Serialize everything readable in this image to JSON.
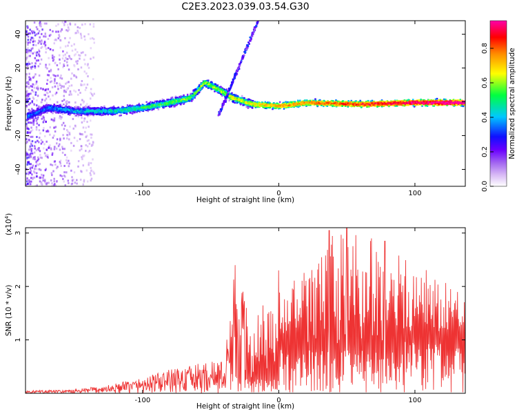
{
  "title": "C2E3.2023.039.03.54.G30",
  "chart_data": [
    {
      "type": "heatmap",
      "xlabel": "Height of straight line (km)",
      "ylabel": "Frequency (Hz)",
      "xlim": [
        -186,
        137
      ],
      "ylim": [
        -50,
        48
      ],
      "xticks": [
        -100,
        0,
        100
      ],
      "yticks": [
        -40,
        -20,
        0,
        20,
        40
      ],
      "colorbar": {
        "label": "Normalized spectral amplitude",
        "range": [
          0,
          0.96
        ],
        "ticks": [
          0.0,
          0.2,
          0.4,
          0.6,
          0.8
        ],
        "colormap": [
          "#ffffff",
          "#d7b8f5",
          "#a468f0",
          "#6a00ff",
          "#1010ff",
          "#00c8ff",
          "#00ff40",
          "#ffff00",
          "#ff8c00",
          "#ff0000",
          "#ff00a8"
        ]
      },
      "ridge": [
        {
          "x": -185,
          "y": -8
        },
        {
          "x": -170,
          "y": -3
        },
        {
          "x": -150,
          "y": -5
        },
        {
          "x": -120,
          "y": -5
        },
        {
          "x": -100,
          "y": -3
        },
        {
          "x": -80,
          "y": 0
        },
        {
          "x": -65,
          "y": 3
        },
        {
          "x": -55,
          "y": 12
        },
        {
          "x": -45,
          "y": 8
        },
        {
          "x": -35,
          "y": 3
        },
        {
          "x": -20,
          "y": -1
        },
        {
          "x": 0,
          "y": -2
        },
        {
          "x": 20,
          "y": 0
        },
        {
          "x": 60,
          "y": -1
        },
        {
          "x": 100,
          "y": 0
        },
        {
          "x": 137,
          "y": 0
        }
      ]
    },
    {
      "type": "line",
      "xlabel": "Height of straight line (km)",
      "ylabel": "SNR (10 * v/v)",
      "scale_label": "(x10",
      "scale_exp": "4",
      "scale_close": ")",
      "xlim": [
        -186,
        137
      ],
      "ylim": [
        0,
        3.1
      ],
      "xticks": [
        -100,
        0,
        100
      ],
      "yticks": [
        1,
        2,
        3
      ],
      "color": "#ee3333",
      "envelope": [
        {
          "x": -186,
          "y": 0.05
        },
        {
          "x": -150,
          "y": 0.07
        },
        {
          "x": -120,
          "y": 0.18
        },
        {
          "x": -100,
          "y": 0.3
        },
        {
          "x": -80,
          "y": 0.45
        },
        {
          "x": -60,
          "y": 0.55
        },
        {
          "x": -40,
          "y": 0.65
        },
        {
          "x": -32,
          "y": 2.4
        },
        {
          "x": -20,
          "y": 1.5
        },
        {
          "x": 0,
          "y": 1.9
        },
        {
          "x": 20,
          "y": 2.3
        },
        {
          "x": 40,
          "y": 3.0
        },
        {
          "x": 50,
          "y": 3.1
        },
        {
          "x": 70,
          "y": 2.9
        },
        {
          "x": 90,
          "y": 2.6
        },
        {
          "x": 110,
          "y": 2.3
        },
        {
          "x": 137,
          "y": 1.9
        }
      ],
      "peaks": [
        {
          "x": -32,
          "y": 2.4
        },
        {
          "x": 0,
          "y": 2.3
        },
        {
          "x": 37,
          "y": 3.05
        },
        {
          "x": 50,
          "y": 3.1
        },
        {
          "x": 68,
          "y": 2.9
        },
        {
          "x": 78,
          "y": 2.85
        }
      ]
    }
  ]
}
